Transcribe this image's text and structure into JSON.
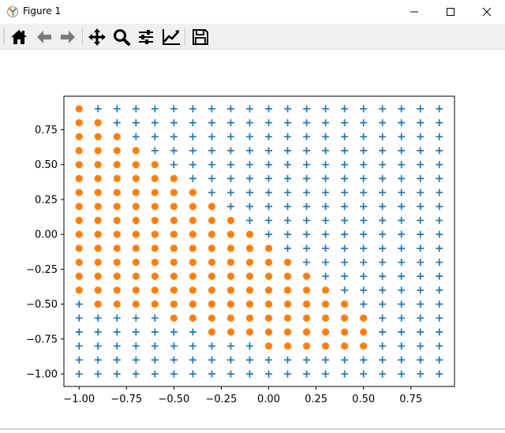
{
  "window": {
    "title": "Figure 1",
    "icons": {
      "app": "matplotlib-figure-icon",
      "minimize": "minimize-icon",
      "maximize": "maximize-icon",
      "close": "close-icon"
    }
  },
  "toolbar": {
    "buttons": [
      {
        "icon": "home-icon",
        "name": "home-button"
      },
      {
        "icon": "back-arrow-icon",
        "name": "back-button"
      },
      {
        "icon": "forward-arrow-icon",
        "name": "forward-button"
      },
      {
        "icon": "pan-move-icon",
        "name": "pan-button"
      },
      {
        "icon": "zoom-magnifier-icon",
        "name": "zoom-button"
      },
      {
        "icon": "configure-subplots-icon",
        "name": "subplots-button"
      },
      {
        "icon": "edit-axis-icon",
        "name": "edit-axis-button"
      },
      {
        "icon": "save-floppy-icon",
        "name": "save-button"
      }
    ]
  },
  "chart_data": {
    "type": "scatter",
    "title": "",
    "xlabel": "",
    "ylabel": "",
    "xlim": [
      -1.08,
      0.98
    ],
    "ylim": [
      -1.09,
      0.99
    ],
    "xticks": [
      "−1.00",
      "−0.75",
      "−0.50",
      "−0.25",
      "0.00",
      "0.25",
      "0.50",
      "0.75"
    ],
    "yticks": [
      "−1.00",
      "−0.75",
      "−0.50",
      "−0.25",
      "0.00",
      "0.25",
      "0.50",
      "0.75"
    ],
    "grid": false,
    "legend": "none",
    "grid_x": [
      -1.0,
      -0.9,
      -0.8,
      -0.7,
      -0.6,
      -0.5,
      -0.4,
      -0.3,
      -0.2,
      -0.1,
      0.0,
      0.1,
      0.2,
      0.3,
      0.4,
      0.5,
      0.6,
      0.7,
      0.8,
      0.9
    ],
    "grid_y": [
      -1.0,
      -0.9,
      -0.8,
      -0.7,
      -0.6,
      -0.5,
      -0.4,
      -0.3,
      -0.2,
      -0.1,
      0.0,
      0.1,
      0.2,
      0.3,
      0.4,
      0.5,
      0.6,
      0.7,
      0.8,
      0.9
    ],
    "series": [
      {
        "marker": "plus",
        "color": "#1f77b4",
        "points": "all grid points not in circle series"
      },
      {
        "marker": "circle",
        "color": "#ff7f0e",
        "rows": [
          {
            "y": 0.9,
            "x_from": -1.0,
            "x_to": -1.0
          },
          {
            "y": 0.8,
            "x_from": -1.0,
            "x_to": -0.9
          },
          {
            "y": 0.7,
            "x_from": -1.0,
            "x_to": -0.8
          },
          {
            "y": 0.6,
            "x_from": -1.0,
            "x_to": -0.7
          },
          {
            "y": 0.5,
            "x_from": -1.0,
            "x_to": -0.6
          },
          {
            "y": 0.4,
            "x_from": -1.0,
            "x_to": -0.5
          },
          {
            "y": 0.3,
            "x_from": -1.0,
            "x_to": -0.4
          },
          {
            "y": 0.2,
            "x_from": -1.0,
            "x_to": -0.3
          },
          {
            "y": 0.1,
            "x_from": -1.0,
            "x_to": -0.2
          },
          {
            "y": 0.0,
            "x_from": -1.0,
            "x_to": -0.1
          },
          {
            "y": -0.1,
            "x_from": -1.0,
            "x_to": 0.0
          },
          {
            "y": -0.2,
            "x_from": -1.0,
            "x_to": 0.1
          },
          {
            "y": -0.3,
            "x_from": -1.0,
            "x_to": 0.2
          },
          {
            "y": -0.4,
            "x_from": -1.0,
            "x_to": 0.3
          },
          {
            "y": -0.5,
            "x_from": -0.9,
            "x_to": 0.4
          },
          {
            "y": -0.6,
            "x_from": -0.5,
            "x_to": 0.5
          },
          {
            "y": -0.7,
            "x_from": -0.3,
            "x_to": 0.5
          },
          {
            "y": -0.8,
            "x_from": 0.0,
            "x_to": 0.5
          }
        ]
      }
    ]
  }
}
